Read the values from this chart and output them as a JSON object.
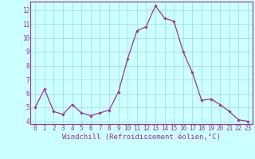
{
  "x": [
    0,
    1,
    2,
    3,
    4,
    5,
    6,
    7,
    8,
    9,
    10,
    11,
    12,
    13,
    14,
    15,
    16,
    17,
    18,
    19,
    20,
    21,
    22,
    23
  ],
  "y": [
    5.0,
    6.3,
    4.7,
    4.5,
    5.2,
    4.6,
    4.4,
    4.6,
    4.8,
    6.1,
    8.5,
    10.5,
    10.8,
    12.3,
    11.4,
    11.2,
    9.0,
    7.5,
    5.5,
    5.6,
    5.2,
    4.7,
    4.1,
    4.0
  ],
  "line_color": "#993399",
  "marker": "D",
  "markersize": 1.8,
  "linewidth": 0.9,
  "xlabel": "Windchill (Refroidissement éolien,°C)",
  "xlabel_fontsize": 6.5,
  "tick_fontsize": 5.5,
  "xlim": [
    -0.5,
    23.5
  ],
  "ylim": [
    3.8,
    12.6
  ],
  "yticks": [
    4,
    5,
    6,
    7,
    8,
    9,
    10,
    11,
    12
  ],
  "xticks": [
    0,
    1,
    2,
    3,
    4,
    5,
    6,
    7,
    8,
    9,
    10,
    11,
    12,
    13,
    14,
    15,
    16,
    17,
    18,
    19,
    20,
    21,
    22,
    23
  ],
  "background_color": "#ccffff",
  "grid_color": "#aadddd",
  "tick_color": "#993399",
  "label_color": "#993399",
  "spine_color": "#993399"
}
